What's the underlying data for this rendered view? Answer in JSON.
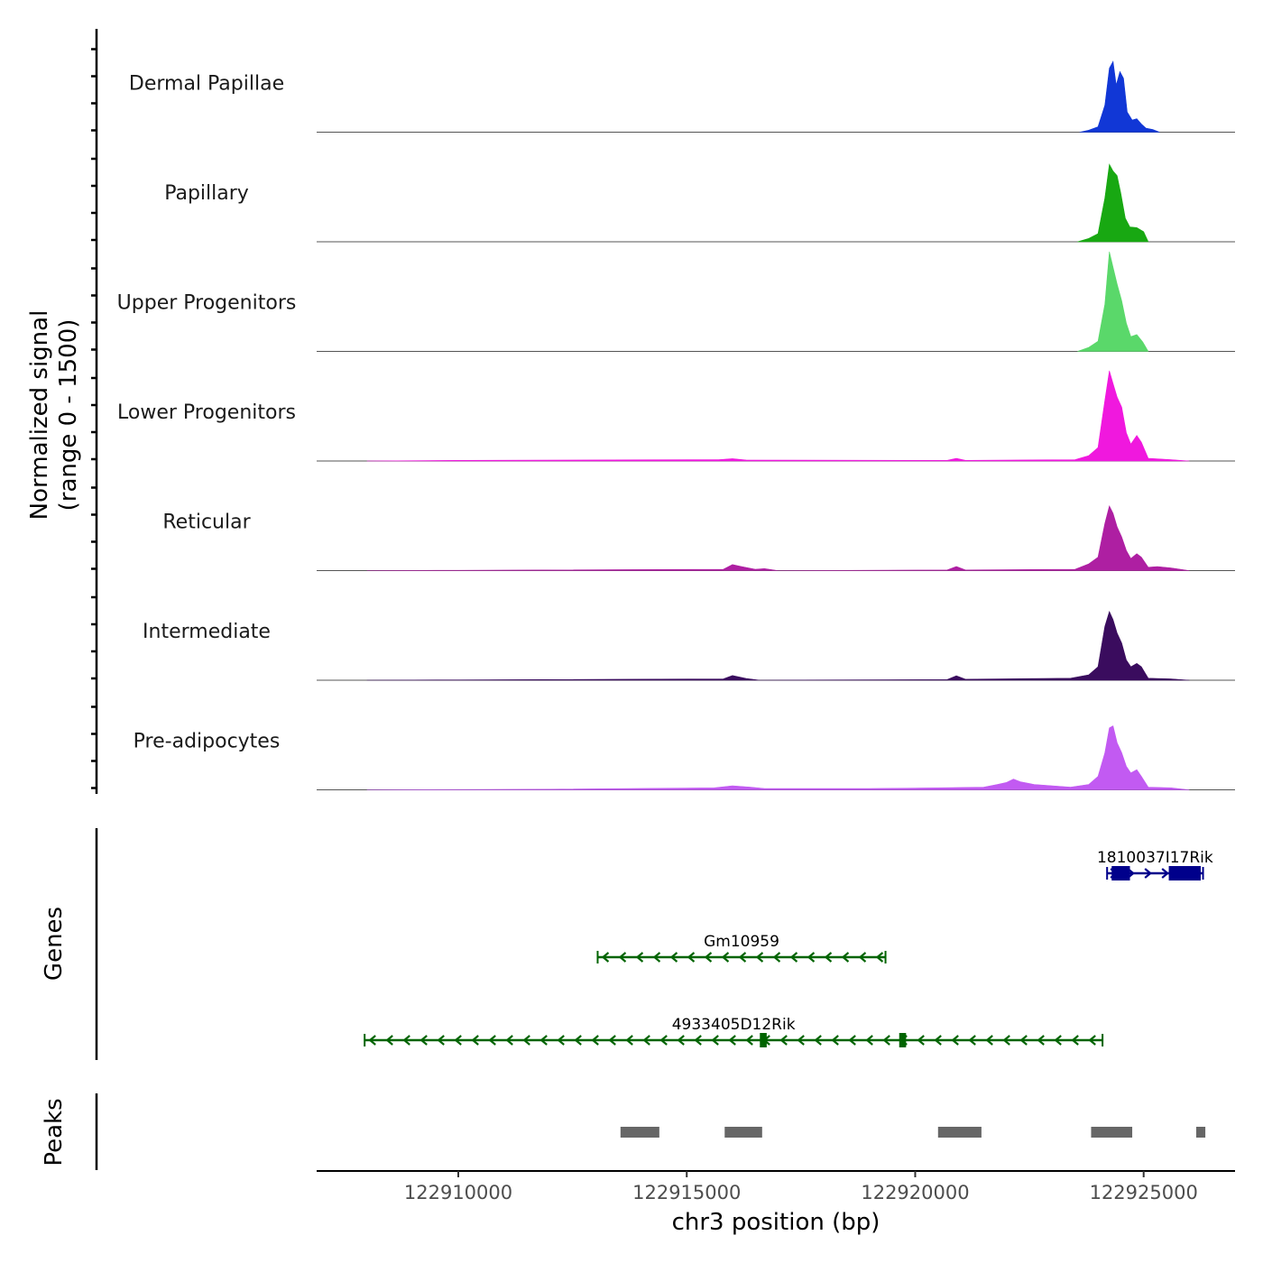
{
  "chart_data": {
    "type": "area",
    "title": "",
    "xlabel": "chr3 position (bp)",
    "ylabel_line1": "Normalized signal",
    "ylabel_line2": "(range 0 - 1500)",
    "xlim": [
      122906900,
      122927000
    ],
    "ylim": [
      0,
      1500
    ],
    "x_ticks": [
      122910000,
      122915000,
      122920000,
      122925000
    ],
    "x_tick_labels": [
      "122910000",
      "122915000",
      "122920000",
      "122925000"
    ],
    "series": [
      {
        "name": "Dermal Papillae",
        "color": "#1137d6",
        "points": [
          [
            122923600,
            0
          ],
          [
            122923800,
            30
          ],
          [
            122924000,
            80
          ],
          [
            122924150,
            400
          ],
          [
            122924250,
            950
          ],
          [
            122924330,
            1050
          ],
          [
            122924400,
            700
          ],
          [
            122924480,
            900
          ],
          [
            122924560,
            800
          ],
          [
            122924640,
            300
          ],
          [
            122924750,
            180
          ],
          [
            122924850,
            200
          ],
          [
            122924950,
            120
          ],
          [
            122925050,
            60
          ],
          [
            122925200,
            40
          ],
          [
            122925350,
            0
          ]
        ]
      },
      {
        "name": "Papillary",
        "color": "#18a812",
        "points": [
          [
            122923550,
            0
          ],
          [
            122923800,
            50
          ],
          [
            122924000,
            120
          ],
          [
            122924150,
            650
          ],
          [
            122924250,
            1150
          ],
          [
            122924330,
            1050
          ],
          [
            122924420,
            980
          ],
          [
            122924500,
            720
          ],
          [
            122924600,
            350
          ],
          [
            122924700,
            220
          ],
          [
            122924850,
            210
          ],
          [
            122925000,
            150
          ],
          [
            122925100,
            0
          ]
        ]
      },
      {
        "name": "Upper Progenitors",
        "color": "#5ad86a",
        "points": [
          [
            122923550,
            0
          ],
          [
            122923800,
            60
          ],
          [
            122924000,
            150
          ],
          [
            122924150,
            700
          ],
          [
            122924250,
            1480
          ],
          [
            122924330,
            1250
          ],
          [
            122924420,
            1000
          ],
          [
            122924520,
            750
          ],
          [
            122924620,
            420
          ],
          [
            122924720,
            220
          ],
          [
            122924850,
            250
          ],
          [
            122924980,
            140
          ],
          [
            122925100,
            0
          ]
        ]
      },
      {
        "name": "Lower Progenitors",
        "color": "#f018de",
        "points": [
          [
            122908000,
            0
          ],
          [
            122910000,
            10
          ],
          [
            122915700,
            20
          ],
          [
            122916000,
            35
          ],
          [
            122916300,
            15
          ],
          [
            122920700,
            10
          ],
          [
            122920900,
            40
          ],
          [
            122921100,
            10
          ],
          [
            122923500,
            20
          ],
          [
            122923800,
            80
          ],
          [
            122924000,
            200
          ],
          [
            122924150,
            900
          ],
          [
            122924250,
            1340
          ],
          [
            122924330,
            1150
          ],
          [
            122924420,
            950
          ],
          [
            122924520,
            800
          ],
          [
            122924620,
            420
          ],
          [
            122924720,
            250
          ],
          [
            122924850,
            380
          ],
          [
            122924950,
            280
          ],
          [
            122925100,
            40
          ],
          [
            122925600,
            20
          ],
          [
            122926000,
            0
          ]
        ]
      },
      {
        "name": "Reticular",
        "color": "#ae1fa2",
        "points": [
          [
            122908000,
            0
          ],
          [
            122915800,
            20
          ],
          [
            122916000,
            90
          ],
          [
            122916200,
            60
          ],
          [
            122916500,
            20
          ],
          [
            122916700,
            30
          ],
          [
            122917000,
            0
          ],
          [
            122920700,
            10
          ],
          [
            122920900,
            60
          ],
          [
            122921100,
            10
          ],
          [
            122923500,
            20
          ],
          [
            122923800,
            100
          ],
          [
            122924000,
            200
          ],
          [
            122924150,
            700
          ],
          [
            122924250,
            960
          ],
          [
            122924330,
            850
          ],
          [
            122924420,
            650
          ],
          [
            122924520,
            500
          ],
          [
            122924620,
            300
          ],
          [
            122924720,
            180
          ],
          [
            122924850,
            250
          ],
          [
            122924950,
            200
          ],
          [
            122925100,
            50
          ],
          [
            122925300,
            60
          ],
          [
            122925600,
            40
          ],
          [
            122926000,
            0
          ]
        ]
      },
      {
        "name": "Intermediate",
        "color": "#3a0c5e",
        "points": [
          [
            122908000,
            0
          ],
          [
            122915800,
            20
          ],
          [
            122916000,
            70
          ],
          [
            122916300,
            25
          ],
          [
            122916600,
            0
          ],
          [
            122920700,
            10
          ],
          [
            122920900,
            65
          ],
          [
            122921100,
            15
          ],
          [
            122923400,
            30
          ],
          [
            122923800,
            80
          ],
          [
            122924000,
            200
          ],
          [
            122924150,
            800
          ],
          [
            122924250,
            1020
          ],
          [
            122924330,
            900
          ],
          [
            122924420,
            700
          ],
          [
            122924520,
            550
          ],
          [
            122924620,
            300
          ],
          [
            122924720,
            200
          ],
          [
            122924850,
            250
          ],
          [
            122924950,
            200
          ],
          [
            122925100,
            30
          ],
          [
            122925600,
            20
          ],
          [
            122926000,
            0
          ]
        ]
      },
      {
        "name": "Pre-adipocytes",
        "color": "#c25af2",
        "points": [
          [
            122908000,
            0
          ],
          [
            122912000,
            10
          ],
          [
            122915600,
            30
          ],
          [
            122916000,
            60
          ],
          [
            122916400,
            40
          ],
          [
            122916700,
            20
          ],
          [
            122919000,
            20
          ],
          [
            122920500,
            30
          ],
          [
            122921500,
            40
          ],
          [
            122921800,
            80
          ],
          [
            122922000,
            110
          ],
          [
            122922150,
            160
          ],
          [
            122922300,
            120
          ],
          [
            122922600,
            80
          ],
          [
            122923000,
            60
          ],
          [
            122923400,
            40
          ],
          [
            122923800,
            80
          ],
          [
            122924000,
            200
          ],
          [
            122924150,
            550
          ],
          [
            122924250,
            920
          ],
          [
            122924330,
            950
          ],
          [
            122924420,
            700
          ],
          [
            122924520,
            550
          ],
          [
            122924620,
            350
          ],
          [
            122924720,
            250
          ],
          [
            122924850,
            300
          ],
          [
            122924950,
            200
          ],
          [
            122925100,
            40
          ],
          [
            122925600,
            30
          ],
          [
            122926000,
            0
          ]
        ]
      }
    ],
    "genes_track_label": "Genes",
    "peaks_track_label": "Peaks",
    "genes": [
      {
        "name": "1810037I17Rik",
        "strand": "+",
        "start": 122924200,
        "end": 122926300,
        "row": 0,
        "color": "#00008b",
        "exons": [
          [
            122924300,
            122924700
          ],
          [
            122925550,
            122926250
          ]
        ]
      },
      {
        "name": "Gm10959",
        "strand": "-",
        "start": 122913050,
        "end": 122919350,
        "row": 1,
        "color": "#006400",
        "exons": []
      },
      {
        "name": "4933405D12Rik",
        "strand": "-",
        "start": 122907950,
        "end": 122924100,
        "row": 2,
        "color": "#006400",
        "exons": [
          [
            122916600,
            122916750
          ],
          [
            122919650,
            122919800
          ]
        ]
      }
    ],
    "peaks": [
      [
        122913550,
        122914400
      ],
      [
        122915830,
        122916650
      ],
      [
        122920500,
        122921450
      ],
      [
        122923850,
        122924750
      ],
      [
        122926150,
        122926350
      ]
    ],
    "peak_color": "#666666"
  }
}
